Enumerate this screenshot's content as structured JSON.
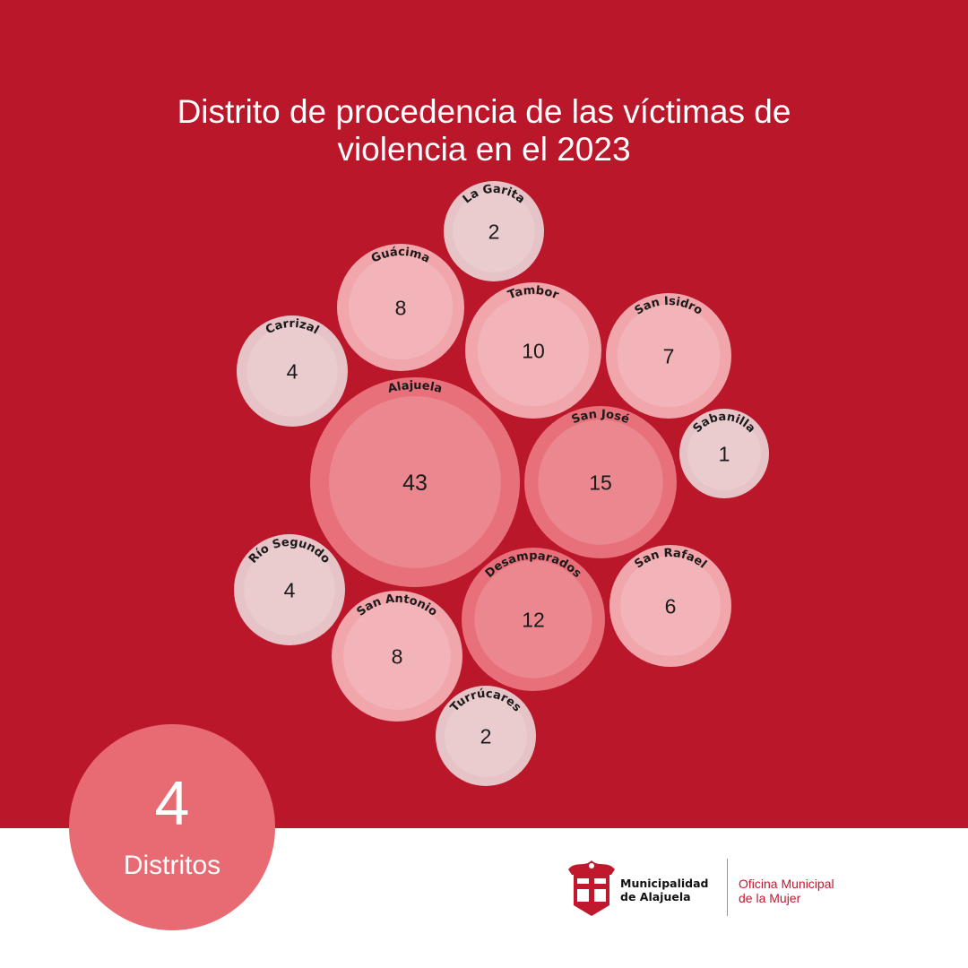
{
  "title_lines": [
    "Distrito de procedencia de las víctimas de",
    "violencia en el 2023"
  ],
  "chart_data": {
    "type": "bubble",
    "title": "Distrito de procedencia de las víctimas de violencia en el 2023",
    "categories": [
      "La Garita",
      "Guácima",
      "Tambor",
      "San Isidro",
      "Carrizal",
      "Alajuela",
      "San José",
      "Sabanilla",
      "Río Segundo",
      "San Antonio",
      "Desamparados",
      "San Rafael",
      "Turrúcares"
    ],
    "values": [
      2,
      8,
      10,
      7,
      4,
      43,
      15,
      1,
      4,
      8,
      12,
      6,
      2
    ]
  },
  "colors": {
    "background": "#bb172b",
    "small_bubble": "#e6c3c6",
    "medium_bubble": "#f0a6ab",
    "large_bubble": "#e8707a",
    "badge": "#e86a73"
  },
  "badge": {
    "number": "4",
    "label": "Distritos"
  },
  "footer": {
    "logo_icon": "municipal-shield-icon",
    "municipality_lines": [
      "Municipalidad",
      "de Alajuela"
    ],
    "office_lines": [
      "Oficina Municipal",
      "de la Mujer"
    ]
  }
}
